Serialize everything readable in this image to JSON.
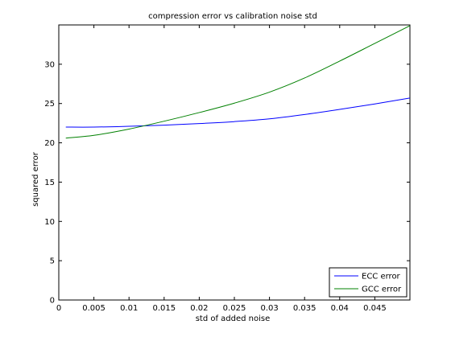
{
  "chart_data": {
    "type": "line",
    "title": "compression error vs calibration noise std",
    "xlabel": "std of added noise",
    "ylabel": "squared error",
    "xlim": [
      0,
      0.05
    ],
    "ylim": [
      0,
      35
    ],
    "xticks": [
      0,
      0.005,
      0.01,
      0.015,
      0.02,
      0.025,
      0.03,
      0.035,
      0.04,
      0.045
    ],
    "xtick_labels": [
      "0",
      "0.005",
      "0.01",
      "0.015",
      "0.02",
      "0.025",
      "0.03",
      "0.035",
      "0.04",
      "0.045"
    ],
    "yticks": [
      0,
      5,
      10,
      15,
      20,
      25,
      30
    ],
    "ytick_labels": [
      "0",
      "5",
      "10",
      "15",
      "20",
      "25",
      "30"
    ],
    "grid": false,
    "legend_position": "bottom-right",
    "x": [
      0.001,
      0.005,
      0.01,
      0.015,
      0.02,
      0.025,
      0.03,
      0.035,
      0.04,
      0.045,
      0.05
    ],
    "series": [
      {
        "name": "ECC error",
        "color": "#0000ff",
        "values": [
          22.0,
          22.0,
          22.1,
          22.25,
          22.45,
          22.7,
          23.05,
          23.6,
          24.25,
          24.95,
          25.7
        ]
      },
      {
        "name": "GCC error",
        "color": "#008000",
        "values": [
          20.6,
          20.95,
          21.75,
          22.75,
          23.85,
          25.05,
          26.45,
          28.25,
          30.4,
          32.65,
          34.9
        ]
      }
    ]
  }
}
